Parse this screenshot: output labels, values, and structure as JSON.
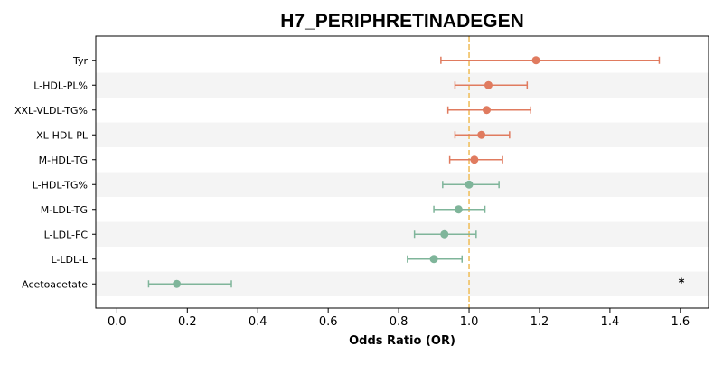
{
  "chart_data": {
    "type": "forest",
    "title": "H7_PERIPHRETINADEGEN",
    "xlabel": "Odds Ratio (OR)",
    "xlim": [
      -0.06,
      1.68
    ],
    "xticks": [
      0.0,
      0.2,
      0.4,
      0.6,
      0.8,
      1.0,
      1.2,
      1.4,
      1.6
    ],
    "xtick_labels": [
      "0.0",
      "0.2",
      "0.4",
      "0.6",
      "0.8",
      "1.0",
      "1.2",
      "1.4",
      "1.6"
    ],
    "reference_line": 1.0,
    "grid": false,
    "colors": {
      "risk": "#e07b5f",
      "protective": "#7fb59a",
      "reference_line": "#f0c060",
      "band": "#f4f4f4"
    },
    "rows": [
      {
        "label": "Tyr",
        "or": 1.19,
        "lo": 0.92,
        "hi": 1.54,
        "group": "risk",
        "annotation": ""
      },
      {
        "label": "L-HDL-PL%",
        "or": 1.055,
        "lo": 0.96,
        "hi": 1.165,
        "group": "risk",
        "annotation": ""
      },
      {
        "label": "XXL-VLDL-TG%",
        "or": 1.05,
        "lo": 0.94,
        "hi": 1.175,
        "group": "risk",
        "annotation": ""
      },
      {
        "label": "XL-HDL-PL",
        "or": 1.035,
        "lo": 0.96,
        "hi": 1.115,
        "group": "risk",
        "annotation": ""
      },
      {
        "label": "M-HDL-TG",
        "or": 1.015,
        "lo": 0.945,
        "hi": 1.095,
        "group": "risk",
        "annotation": ""
      },
      {
        "label": "L-HDL-TG%",
        "or": 1.0,
        "lo": 0.925,
        "hi": 1.085,
        "group": "protective",
        "annotation": ""
      },
      {
        "label": "M-LDL-TG",
        "or": 0.97,
        "lo": 0.9,
        "hi": 1.045,
        "group": "protective",
        "annotation": ""
      },
      {
        "label": "L-LDL-FC",
        "or": 0.93,
        "lo": 0.845,
        "hi": 1.02,
        "group": "protective",
        "annotation": ""
      },
      {
        "label": "L-LDL-L",
        "or": 0.9,
        "lo": 0.825,
        "hi": 0.98,
        "group": "protective",
        "annotation": ""
      },
      {
        "label": "Acetoacetate",
        "or": 0.17,
        "lo": 0.09,
        "hi": 0.325,
        "group": "protective",
        "annotation": "*"
      }
    ]
  }
}
